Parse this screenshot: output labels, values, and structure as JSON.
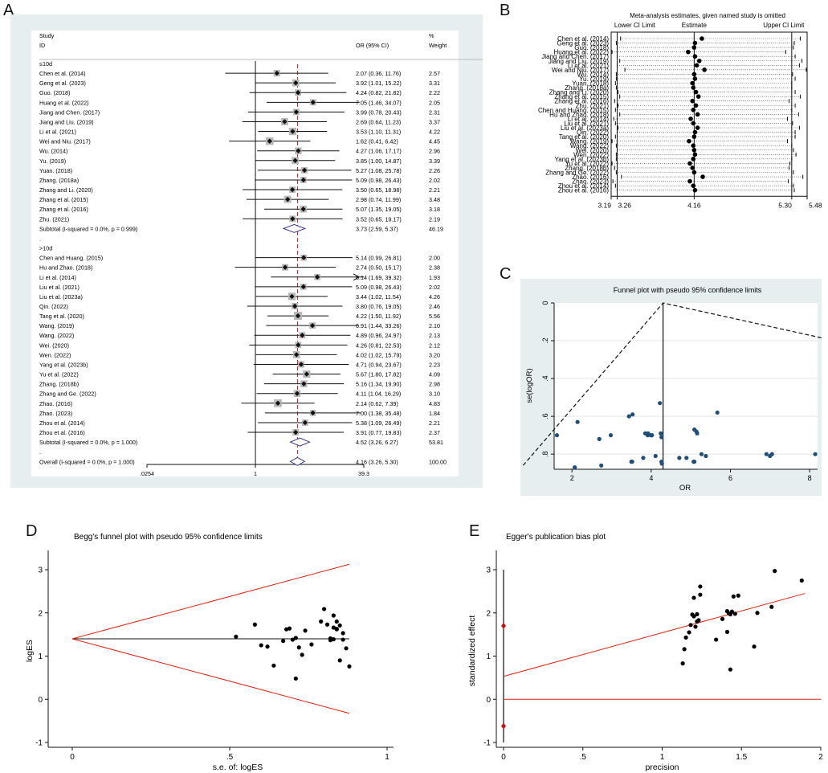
{
  "panels": {
    "a": "A",
    "b": "B",
    "c": "C",
    "d": "D",
    "e": "E"
  },
  "chart_data": [
    {
      "type": "forest",
      "panel": "A",
      "header": {
        "study": "Study",
        "id": "ID",
        "or": "OR (95% CI)",
        "pct": "%",
        "weight": "Weight"
      },
      "axis": {
        "scale": "log",
        "xlim": [
          0.0254,
          39.3
        ],
        "ticks": [
          ".0254",
          "1",
          "39.3"
        ],
        "ref_line": 1,
        "overall_line": 4.16
      },
      "rows": [
        {
          "kind": "group",
          "label": "≤10d"
        },
        {
          "kind": "study",
          "label": "Chen et al. (2014)",
          "or": 2.07,
          "lo": 0.36,
          "hi": 11.76,
          "ci": "2.07 (0.36, 11.76)",
          "weight": "2.57"
        },
        {
          "kind": "study",
          "label": "Geng et al. (2023)",
          "or": 3.92,
          "lo": 1.01,
          "hi": 15.22,
          "ci": "3.92 (1.01, 15.22)",
          "weight": "3.31"
        },
        {
          "kind": "study",
          "label": "Guo. (2018)",
          "or": 4.24,
          "lo": 0.82,
          "hi": 21.82,
          "ci": "4.24 (0.82, 21.82)",
          "weight": "2.22"
        },
        {
          "kind": "study",
          "label": "Huang et al. (2022)",
          "or": 7.05,
          "lo": 1.46,
          "hi": 34.07,
          "ci": "7.05 (1.46, 34.07)",
          "weight": "2.05"
        },
        {
          "kind": "study",
          "label": "Jiang and Chen. (2017)",
          "or": 3.99,
          "lo": 0.78,
          "hi": 20.43,
          "ci": "3.99 (0.78, 20.43)",
          "weight": "2.31"
        },
        {
          "kind": "study",
          "label": "Jiang and Liu. (2019)",
          "or": 2.69,
          "lo": 0.64,
          "hi": 11.23,
          "ci": "2.69 (0.64, 11.23)",
          "weight": "3.37"
        },
        {
          "kind": "study",
          "label": "Li et al. (2021)",
          "or": 3.53,
          "lo": 1.1,
          "hi": 11.31,
          "ci": "3.53 (1.10, 11.31)",
          "weight": "4.22"
        },
        {
          "kind": "study",
          "label": "Wei and Niu. (2017)",
          "or": 1.62,
          "lo": 0.41,
          "hi": 6.42,
          "ci": "1.62 (0.41, 6.42)",
          "weight": "4.45"
        },
        {
          "kind": "study",
          "label": "Wu. (2014)",
          "or": 4.27,
          "lo": 1.06,
          "hi": 17.17,
          "ci": "4.27 (1.06, 17.17)",
          "weight": "2.96"
        },
        {
          "kind": "study",
          "label": "Yu. (2019)",
          "or": 3.85,
          "lo": 1.0,
          "hi": 14.87,
          "ci": "3.85 (1.00, 14.87)",
          "weight": "3.39"
        },
        {
          "kind": "study",
          "label": "Yuan. (2018)",
          "or": 5.27,
          "lo": 1.08,
          "hi": 25.78,
          "ci": "5.27 (1.08, 25.78)",
          "weight": "2.26"
        },
        {
          "kind": "study",
          "label": "Zhang. (2018a)",
          "or": 5.09,
          "lo": 0.98,
          "hi": 26.43,
          "ci": "5.09 (0.98, 26.43)",
          "weight": "2.02"
        },
        {
          "kind": "study",
          "label": "Zhang and Li. (2020)",
          "or": 3.5,
          "lo": 0.65,
          "hi": 18.98,
          "ci": "3.50 (0.65, 18.98)",
          "weight": "2.21"
        },
        {
          "kind": "study",
          "label": "Zhang et al. (2015)",
          "or": 2.98,
          "lo": 0.74,
          "hi": 11.99,
          "ci": "2.98 (0.74, 11.99)",
          "weight": "3.48"
        },
        {
          "kind": "study",
          "label": "Zhang et al. (2016)",
          "or": 5.07,
          "lo": 1.35,
          "hi": 19.05,
          "ci": "5.07 (1.35, 19.05)",
          "weight": "3.18"
        },
        {
          "kind": "study",
          "label": "Zhu. (2021)",
          "or": 3.52,
          "lo": 0.65,
          "hi": 19.17,
          "ci": "3.52 (0.65, 19.17)",
          "weight": "2.19"
        },
        {
          "kind": "subtotal",
          "label": "Subtotal  (I-squared = 0.0%, p = 0.999)",
          "or": 3.73,
          "lo": 2.59,
          "hi": 5.37,
          "ci": "3.73 (2.59, 5.37)",
          "weight": "46.19"
        },
        {
          "kind": "dot",
          "label": "."
        },
        {
          "kind": "group",
          "label": ">10d"
        },
        {
          "kind": "study",
          "label": "Chen and Huang. (2015)",
          "or": 5.14,
          "lo": 0.99,
          "hi": 26.81,
          "ci": "5.14 (0.99, 26.81)",
          "weight": "2.00"
        },
        {
          "kind": "study",
          "label": "Hu and Zhao. (2018)",
          "or": 2.74,
          "lo": 0.5,
          "hi": 15.17,
          "ci": "2.74 (0.50, 15.17)",
          "weight": "2.38"
        },
        {
          "kind": "study",
          "label": "Li et al. (2014)",
          "or": 8.14,
          "lo": 1.69,
          "hi": 39.32,
          "ci": "8.14 (1.69, 39.32)",
          "weight": "1.93",
          "arrow": true
        },
        {
          "kind": "study",
          "label": "Liu et al. (2021)",
          "or": 5.09,
          "lo": 0.98,
          "hi": 26.43,
          "ci": "5.09 (0.98, 26.43)",
          "weight": "2.02"
        },
        {
          "kind": "study",
          "label": "Liu et al. (2023a)",
          "or": 3.44,
          "lo": 1.02,
          "hi": 11.54,
          "ci": "3.44 (1.02, 11.54)",
          "weight": "4.26"
        },
        {
          "kind": "study",
          "label": "Qin. (2022)",
          "or": 3.8,
          "lo": 0.76,
          "hi": 19.05,
          "ci": "3.80 (0.76, 19.05)",
          "weight": "2.46"
        },
        {
          "kind": "study",
          "label": "Tang et al. (2020)",
          "or": 4.22,
          "lo": 1.5,
          "hi": 11.92,
          "ci": "4.22 (1.50, 11.92)",
          "weight": "5.56"
        },
        {
          "kind": "study",
          "label": "Wang. (2019)",
          "or": 6.91,
          "lo": 1.44,
          "hi": 33.26,
          "ci": "6.91 (1.44, 33.26)",
          "weight": "2.10"
        },
        {
          "kind": "study",
          "label": "Wang. (2022)",
          "or": 4.89,
          "lo": 0.96,
          "hi": 24.97,
          "ci": "4.89 (0.96, 24.97)",
          "weight": "2.13"
        },
        {
          "kind": "study",
          "label": "Wei. (2020)",
          "or": 4.26,
          "lo": 0.81,
          "hi": 22.53,
          "ci": "4.26 (0.81, 22.53)",
          "weight": "2.12"
        },
        {
          "kind": "study",
          "label": "Wen. (2022)",
          "or": 4.02,
          "lo": 1.02,
          "hi": 15.79,
          "ci": "4.02 (1.02, 15.79)",
          "weight": "3.20"
        },
        {
          "kind": "study",
          "label": "Yang et al. (2023b)",
          "or": 4.71,
          "lo": 0.94,
          "hi": 23.67,
          "ci": "4.71 (0.94, 23.67)",
          "weight": "2.23"
        },
        {
          "kind": "study",
          "label": "Yu et al. (2022)",
          "or": 5.67,
          "lo": 1.8,
          "hi": 17.82,
          "ci": "5.67 (1.80, 17.82)",
          "weight": "4.09"
        },
        {
          "kind": "study",
          "label": "Zhang. (2018b)",
          "or": 5.16,
          "lo": 1.34,
          "hi": 19.9,
          "ci": "5.16 (1.34, 19.90)",
          "weight": "2.98"
        },
        {
          "kind": "study",
          "label": "Zhang and Ge. (2022)",
          "or": 4.11,
          "lo": 1.04,
          "hi": 16.29,
          "ci": "4.11 (1.04, 16.29)",
          "weight": "3.10"
        },
        {
          "kind": "study",
          "label": "Zhao. (2016)",
          "or": 2.14,
          "lo": 0.62,
          "hi": 7.39,
          "ci": "2.14 (0.62, 7.39)",
          "weight": "4.83"
        },
        {
          "kind": "study",
          "label": "Zhao. (2023)",
          "or": 7.0,
          "lo": 1.38,
          "hi": 35.48,
          "ci": "7.00 (1.38, 35.48)",
          "weight": "1.84"
        },
        {
          "kind": "study",
          "label": "Zhou et al. (2014)",
          "or": 5.38,
          "lo": 1.09,
          "hi": 26.49,
          "ci": "5.38 (1.09, 26.49)",
          "weight": "2.21"
        },
        {
          "kind": "study",
          "label": "Zhou et al. (2016)",
          "or": 3.91,
          "lo": 0.77,
          "hi": 19.83,
          "ci": "3.91 (0.77, 19.83)",
          "weight": "2.37"
        },
        {
          "kind": "subtotal",
          "label": "Subtotal  (I-squared = 0.0%, p = 1.000)",
          "or": 4.52,
          "lo": 3.26,
          "hi": 6.27,
          "ci": "4.52 (3.26, 6.27)",
          "weight": "53.81"
        },
        {
          "kind": "dot",
          "label": "."
        },
        {
          "kind": "overall",
          "label": "Overall  (I-squared = 0.0%, p = 1.000)",
          "or": 4.16,
          "lo": 3.26,
          "hi": 5.3,
          "ci": "4.16 (3.26, 5.30)",
          "weight": "100.00"
        }
      ]
    },
    {
      "type": "influence",
      "panel": "B",
      "title": "Meta-analysis estimates, given named study is omitted",
      "legend": [
        "Lower CI Limit",
        "Estimate",
        "Upper CI Limit"
      ],
      "xlim": [
        3.19,
        5.48
      ],
      "ticks": [
        "3.19",
        "3.26",
        "4.16",
        "5.30",
        "5.48"
      ],
      "studies": [
        "Chen et al. (2014)",
        "Geng et al. (2023)",
        "Guo. (2018)",
        "Huang et al. (2022)",
        "Jiang and Chen. (2017)",
        "Jiang and Liu. (2019)",
        "Li et al. (2021)",
        "Wei and Niu. (2017)",
        "Wu. (2014)",
        "Yu. (2019)",
        "Yuan. (2018)",
        "Zhang. (2018a)",
        "Zhang and Li. (2020)",
        "Zhang et al. (2015)",
        "Zhang et al. (2016)",
        "Zhu. (2021)",
        "Chen and Huang. (2015)",
        "Hu and Zhao. (2018)",
        "Li et al. (2014)",
        "Liu et al. (2021)",
        "Liu et al. (2023a)",
        "Qin. (2022)",
        "Tang et al. (2020)",
        "Wang. (2019)",
        "Wang. (2022)",
        "Wei. (2020)",
        "Wen. (2022)",
        "Yang et al. (2023b)",
        "Yu et al. (2022)",
        "Zhang. (2018b)",
        "Zhang and Ge. (2022)",
        "Zhao. (2016)",
        "Zhao. (2023)",
        "Zhou et al. (2014)",
        "Zhou et al. (2016)"
      ],
      "estimates": [
        4.25,
        4.17,
        4.16,
        4.09,
        4.17,
        4.22,
        4.19,
        4.28,
        4.16,
        4.17,
        4.14,
        4.15,
        4.18,
        4.21,
        4.14,
        4.18,
        4.15,
        4.2,
        4.12,
        4.15,
        4.2,
        4.17,
        4.16,
        4.1,
        4.15,
        4.16,
        4.17,
        4.15,
        4.11,
        4.14,
        4.16,
        4.26,
        4.11,
        4.15,
        4.17
      ],
      "lower": [
        3.3,
        3.25,
        3.26,
        3.2,
        3.26,
        3.29,
        3.26,
        3.35,
        3.25,
        3.25,
        3.24,
        3.25,
        3.27,
        3.29,
        3.23,
        3.27,
        3.24,
        3.29,
        3.22,
        3.24,
        3.27,
        3.26,
        3.24,
        3.2,
        3.25,
        3.26,
        3.25,
        3.25,
        3.2,
        3.23,
        3.25,
        3.31,
        3.21,
        3.24,
        3.26
      ],
      "upper": [
        5.4,
        5.33,
        5.32,
        5.23,
        5.34,
        5.42,
        5.39,
        5.47,
        5.31,
        5.34,
        5.3,
        5.3,
        5.34,
        5.4,
        5.27,
        5.34,
        5.3,
        5.38,
        5.25,
        5.31,
        5.39,
        5.34,
        5.34,
        5.25,
        5.3,
        5.32,
        5.35,
        5.3,
        5.28,
        5.27,
        5.32,
        5.43,
        5.26,
        5.32,
        5.33
      ]
    },
    {
      "type": "scatter",
      "panel": "C",
      "title": "Funnel plot with pseudo 95% confidence limits",
      "xlabel": "OR",
      "ylabel": "se(logOR)",
      "xlim": [
        1.55,
        8.2
      ],
      "ylim": [
        0,
        0.88
      ],
      "xticks": [
        "2",
        "4",
        "6",
        "8"
      ],
      "yticks": [
        "0",
        ".2",
        ".4",
        ".6",
        ".8"
      ],
      "center": 4.3,
      "points": [
        [
          1.62,
          0.7
        ],
        [
          2.07,
          0.87
        ],
        [
          2.14,
          0.63
        ],
        [
          2.69,
          0.72
        ],
        [
          2.74,
          0.86
        ],
        [
          2.98,
          0.7
        ],
        [
          3.44,
          0.6
        ],
        [
          3.5,
          0.84
        ],
        [
          3.52,
          0.84
        ],
        [
          3.53,
          0.59
        ],
        [
          3.8,
          0.82
        ],
        [
          3.85,
          0.69
        ],
        [
          3.91,
          0.7
        ],
        [
          3.92,
          0.69
        ],
        [
          3.99,
          0.7
        ],
        [
          4.02,
          0.7
        ],
        [
          4.11,
          0.81
        ],
        [
          4.22,
          0.53
        ],
        [
          4.24,
          0.69
        ],
        [
          4.26,
          0.84
        ],
        [
          4.27,
          0.85
        ],
        [
          4.26,
          0.71
        ],
        [
          4.71,
          0.82
        ],
        [
          4.89,
          0.82
        ],
        [
          5.07,
          0.84
        ],
        [
          5.09,
          0.67
        ],
        [
          5.09,
          0.84
        ],
        [
          5.14,
          0.68
        ],
        [
          5.16,
          0.69
        ],
        [
          5.27,
          0.8
        ],
        [
          5.38,
          0.81
        ],
        [
          5.67,
          0.58
        ],
        [
          6.91,
          0.8
        ],
        [
          7.0,
          0.81
        ],
        [
          7.05,
          0.8
        ],
        [
          8.14,
          0.8
        ]
      ]
    },
    {
      "type": "scatter",
      "panel": "D",
      "title": "Begg's funnel plot with pseudo 95% confidence limits",
      "xlabel": "s.e. of: logES",
      "ylabel": "logES",
      "xlim": [
        0,
        1
      ],
      "ylim": [
        -1,
        3
      ],
      "xticks": [
        "0",
        ".5",
        "1"
      ],
      "yticks": [
        "-1",
        "0",
        "1",
        "2",
        "3"
      ],
      "center": 1.4,
      "points": [
        [
          0.52,
          1.45
        ],
        [
          0.58,
          1.73
        ],
        [
          0.6,
          1.25
        ],
        [
          0.62,
          1.22
        ],
        [
          0.64,
          0.78
        ],
        [
          0.67,
          1.35
        ],
        [
          0.68,
          1.62
        ],
        [
          0.69,
          1.64
        ],
        [
          0.7,
          1.38
        ],
        [
          0.71,
          1.42
        ],
        [
          0.71,
          0.48
        ],
        [
          0.72,
          1.2
        ],
        [
          0.73,
          1.03
        ],
        [
          0.74,
          1.59
        ],
        [
          0.76,
          1.27
        ],
        [
          0.79,
          1.8
        ],
        [
          0.8,
          2.09
        ],
        [
          0.81,
          1.73
        ],
        [
          0.82,
          1.41
        ],
        [
          0.82,
          1.37
        ],
        [
          0.83,
          1.66
        ],
        [
          0.83,
          1.39
        ],
        [
          0.84,
          1.63
        ],
        [
          0.84,
          1.8
        ],
        [
          0.84,
          1.62
        ],
        [
          0.85,
          1.71
        ],
        [
          0.85,
          0.9
        ],
        [
          0.86,
          1.53
        ],
        [
          0.86,
          1.38
        ],
        [
          0.87,
          1.18
        ],
        [
          0.88,
          0.76
        ],
        [
          0.83,
          1.94
        ]
      ]
    },
    {
      "type": "scatter",
      "panel": "E",
      "title": "Egger's publication bias plot",
      "xlabel": "precision",
      "ylabel": "standardized effect",
      "xlim": [
        0,
        2
      ],
      "ylim": [
        -1,
        3
      ],
      "xticks": [
        "0",
        ".5",
        "1",
        "1.5",
        "2"
      ],
      "yticks": [
        "-1",
        "0",
        "1",
        "2",
        "3"
      ],
      "ci_bar": [
        -0.62,
        1.7
      ],
      "points": [
        [
          1.13,
          0.83
        ],
        [
          1.14,
          1.16
        ],
        [
          1.15,
          1.43
        ],
        [
          1.17,
          1.55
        ],
        [
          1.18,
          1.72
        ],
        [
          1.19,
          1.96
        ],
        [
          1.2,
          1.92
        ],
        [
          1.2,
          2.35
        ],
        [
          1.21,
          1.68
        ],
        [
          1.22,
          1.8
        ],
        [
          1.22,
          1.97
        ],
        [
          1.23,
          1.83
        ],
        [
          1.24,
          2.42
        ],
        [
          1.24,
          2.61
        ],
        [
          1.34,
          1.38
        ],
        [
          1.38,
          1.86
        ],
        [
          1.41,
          1.56
        ],
        [
          1.41,
          2.04
        ],
        [
          1.42,
          1.99
        ],
        [
          1.43,
          1.97
        ],
        [
          1.43,
          0.69
        ],
        [
          1.44,
          2.03
        ],
        [
          1.45,
          2.38
        ],
        [
          1.46,
          1.98
        ],
        [
          1.48,
          2.4
        ],
        [
          1.58,
          1.22
        ],
        [
          1.6,
          2.0
        ],
        [
          1.69,
          2.14
        ],
        [
          1.71,
          2.97
        ],
        [
          1.88,
          2.75
        ]
      ],
      "lines": {
        "fit": [
          [
            0,
            0.53
          ],
          [
            1.9,
            2.45
          ]
        ],
        "zero": 0
      }
    }
  ]
}
